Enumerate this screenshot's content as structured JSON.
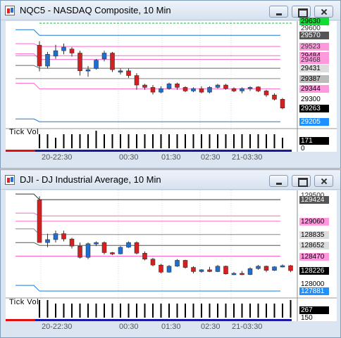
{
  "windows": [
    {
      "title": "NQC5 - NASDAQ Composite, 10 Min",
      "price_labels": [
        {
          "text": "29630",
          "bg": "#11dd33",
          "fg": "#000000"
        },
        {
          "text": "29600",
          "bg": "transparent",
          "fg": "#333333"
        },
        {
          "text": "29570",
          "bg": "#555555",
          "fg": "#ffffff"
        },
        {
          "text": "29523",
          "bg": "#ff99dd",
          "fg": "#333333"
        },
        {
          "text": "29484",
          "bg": "#ff99dd",
          "fg": "#000000"
        },
        {
          "text": "29468",
          "bg": "#ff99dd",
          "fg": "#333333"
        },
        {
          "text": "29431",
          "bg": "#dddddd",
          "fg": "#000000"
        },
        {
          "text": "29387",
          "bg": "#bbbbbb",
          "fg": "#000000"
        },
        {
          "text": "29344",
          "bg": "#ff99dd",
          "fg": "#000000"
        },
        {
          "text": "29300",
          "bg": "transparent",
          "fg": "#000000"
        },
        {
          "text": "29263",
          "bg": "#000000",
          "fg": "#ffffff"
        },
        {
          "text": "29205",
          "bg": "#1e90ff",
          "fg": "#ffffff"
        }
      ],
      "volume_label": "Tick Vol",
      "volume_values": [
        {
          "text": "171",
          "bg": "#000000",
          "fg": "#ffffff"
        },
        {
          "text": "0",
          "bg": "transparent",
          "fg": "#000000"
        }
      ],
      "time_labels": [
        "20-22:30",
        "00:30",
        "01:30",
        "02:30",
        "21-03:30"
      ]
    },
    {
      "title": "DJI - DJ Industrial Average, 10 Min",
      "price_labels": [
        {
          "text": "129500",
          "bg": "transparent",
          "fg": "#333333"
        },
        {
          "text": "129424",
          "bg": "#555555",
          "fg": "#ffffff"
        },
        {
          "text": "129060",
          "bg": "#ff99dd",
          "fg": "#000000"
        },
        {
          "text": "128835",
          "bg": "#dddddd",
          "fg": "#000000"
        },
        {
          "text": "128652",
          "bg": "#dddddd",
          "fg": "#000000"
        },
        {
          "text": "128470",
          "bg": "#ff99dd",
          "fg": "#000000"
        },
        {
          "text": "128226",
          "bg": "#000000",
          "fg": "#ffffff"
        },
        {
          "text": "128000",
          "bg": "transparent",
          "fg": "#000000"
        },
        {
          "text": "127881",
          "bg": "#1e90ff",
          "fg": "#ffffff"
        }
      ],
      "volume_label": "Tick Vol",
      "volume_values": [
        {
          "text": "267",
          "bg": "#000000",
          "fg": "#ffffff"
        },
        {
          "text": "150",
          "bg": "transparent",
          "fg": "#000000"
        }
      ],
      "time_labels": [
        "20-22:30",
        "00:30",
        "01:30",
        "02:30",
        "21-03:30"
      ]
    }
  ],
  "chart_data": [
    {
      "type": "candlestick",
      "title": "NQC5 - NASDAQ Composite, 10 Min",
      "ylim": [
        29185,
        29630
      ],
      "levels": [
        {
          "value": 29570,
          "color": "#1a7ad9"
        },
        {
          "value": 29523,
          "color": "#ff66cc"
        },
        {
          "value": 29484,
          "color": "#ff66cc"
        },
        {
          "value": 29468,
          "color": "#ff66cc"
        },
        {
          "value": 29431,
          "color": "#666666"
        },
        {
          "value": 29387,
          "color": "#888888"
        },
        {
          "value": 29344,
          "color": "#ff66cc"
        },
        {
          "value": 29205,
          "color": "#1a7ad9"
        }
      ],
      "candles": [
        {
          "o": 29528,
          "h": 29545,
          "l": 29418,
          "c": 29440
        },
        {
          "o": 29440,
          "h": 29500,
          "l": 29430,
          "c": 29490
        },
        {
          "o": 29482,
          "h": 29530,
          "l": 29470,
          "c": 29505
        },
        {
          "o": 29505,
          "h": 29535,
          "l": 29490,
          "c": 29520
        },
        {
          "o": 29512,
          "h": 29520,
          "l": 29480,
          "c": 29495
        },
        {
          "o": 29495,
          "h": 29505,
          "l": 29400,
          "c": 29420
        },
        {
          "o": 29420,
          "h": 29440,
          "l": 29395,
          "c": 29425
        },
        {
          "o": 29430,
          "h": 29470,
          "l": 29425,
          "c": 29465
        },
        {
          "o": 29470,
          "h": 29505,
          "l": 29460,
          "c": 29495
        },
        {
          "o": 29495,
          "h": 29500,
          "l": 29415,
          "c": 29425
        },
        {
          "o": 29420,
          "h": 29430,
          "l": 29405,
          "c": 29420
        },
        {
          "o": 29420,
          "h": 29430,
          "l": 29390,
          "c": 29400
        },
        {
          "o": 29400,
          "h": 29410,
          "l": 29340,
          "c": 29360
        },
        {
          "o": 29360,
          "h": 29365,
          "l": 29340,
          "c": 29350
        },
        {
          "o": 29350,
          "h": 29360,
          "l": 29320,
          "c": 29330
        },
        {
          "o": 29330,
          "h": 29355,
          "l": 29325,
          "c": 29345
        },
        {
          "o": 29345,
          "h": 29370,
          "l": 29340,
          "c": 29365
        },
        {
          "o": 29365,
          "h": 29370,
          "l": 29340,
          "c": 29350
        },
        {
          "o": 29350,
          "h": 29355,
          "l": 29330,
          "c": 29335
        },
        {
          "o": 29335,
          "h": 29350,
          "l": 29330,
          "c": 29345
        },
        {
          "o": 29345,
          "h": 29355,
          "l": 29325,
          "c": 29330
        },
        {
          "o": 29330,
          "h": 29355,
          "l": 29325,
          "c": 29350
        },
        {
          "o": 29350,
          "h": 29365,
          "l": 29345,
          "c": 29360
        },
        {
          "o": 29360,
          "h": 29365,
          "l": 29340,
          "c": 29345
        },
        {
          "o": 29345,
          "h": 29350,
          "l": 29330,
          "c": 29335
        },
        {
          "o": 29335,
          "h": 29350,
          "l": 29325,
          "c": 29345
        },
        {
          "o": 29345,
          "h": 29355,
          "l": 29335,
          "c": 29350
        },
        {
          "o": 29352,
          "h": 29355,
          "l": 29330,
          "c": 29335
        },
        {
          "o": 29335,
          "h": 29340,
          "l": 29310,
          "c": 29318
        },
        {
          "o": 29318,
          "h": 29325,
          "l": 29295,
          "c": 29300
        },
        {
          "o": 29300,
          "h": 29305,
          "l": 29258,
          "c": 29263
        }
      ],
      "volume": [
        4,
        4,
        3,
        4,
        4,
        4,
        4,
        5,
        4,
        4,
        4,
        4,
        4,
        4,
        4,
        4,
        4,
        4,
        4,
        4,
        4,
        4,
        4,
        4,
        4,
        4,
        4,
        4,
        4,
        4,
        3
      ]
    },
    {
      "type": "candlestick",
      "title": "DJI - DJ Industrial Average, 10 Min",
      "ylim": [
        127800,
        129580
      ],
      "levels": [
        {
          "value": 129424,
          "color": "#333333"
        },
        {
          "value": 129150,
          "color": "#ff66cc"
        },
        {
          "value": 129060,
          "color": "#ff66cc"
        },
        {
          "value": 128835,
          "color": "#888888"
        },
        {
          "value": 128652,
          "color": "#555555"
        },
        {
          "value": 128470,
          "color": "#ff66cc"
        },
        {
          "value": 127881,
          "color": "#1a7ad9"
        }
      ],
      "candles": [
        {
          "o": 129420,
          "h": 129480,
          "l": 128700,
          "c": 128700
        },
        {
          "o": 128700,
          "h": 128850,
          "l": 128620,
          "c": 128750
        },
        {
          "o": 128750,
          "h": 128900,
          "l": 128700,
          "c": 128850
        },
        {
          "o": 128850,
          "h": 128900,
          "l": 128720,
          "c": 128760
        },
        {
          "o": 128760,
          "h": 128780,
          "l": 128600,
          "c": 128640
        },
        {
          "o": 128640,
          "h": 128700,
          "l": 128430,
          "c": 128450
        },
        {
          "o": 128450,
          "h": 128700,
          "l": 128420,
          "c": 128680
        },
        {
          "o": 128680,
          "h": 128720,
          "l": 128640,
          "c": 128700
        },
        {
          "o": 128700,
          "h": 128720,
          "l": 128500,
          "c": 128530
        },
        {
          "o": 128530,
          "h": 128540,
          "l": 128490,
          "c": 128510
        },
        {
          "o": 128510,
          "h": 128640,
          "l": 128500,
          "c": 128620
        },
        {
          "o": 128620,
          "h": 128720,
          "l": 128610,
          "c": 128700
        },
        {
          "o": 128700,
          "h": 128720,
          "l": 128500,
          "c": 128520
        },
        {
          "o": 128520,
          "h": 128550,
          "l": 128400,
          "c": 128420
        },
        {
          "o": 128420,
          "h": 128440,
          "l": 128300,
          "c": 128320
        },
        {
          "o": 128320,
          "h": 128340,
          "l": 128180,
          "c": 128200
        },
        {
          "o": 128200,
          "h": 128320,
          "l": 128190,
          "c": 128300
        },
        {
          "o": 128300,
          "h": 128420,
          "l": 128290,
          "c": 128400
        },
        {
          "o": 128400,
          "h": 128410,
          "l": 128260,
          "c": 128280
        },
        {
          "o": 128280,
          "h": 128300,
          "l": 128180,
          "c": 128210
        },
        {
          "o": 128210,
          "h": 128250,
          "l": 128190,
          "c": 128240
        },
        {
          "o": 128240,
          "h": 128290,
          "l": 128200,
          "c": 128210
        },
        {
          "o": 128210,
          "h": 128320,
          "l": 128200,
          "c": 128300
        },
        {
          "o": 128300,
          "h": 128310,
          "l": 128160,
          "c": 128170
        },
        {
          "o": 128170,
          "h": 128200,
          "l": 128150,
          "c": 128180
        },
        {
          "o": 128180,
          "h": 128220,
          "l": 128150,
          "c": 128160
        },
        {
          "o": 128160,
          "h": 128280,
          "l": 128150,
          "c": 128260
        },
        {
          "o": 128260,
          "h": 128320,
          "l": 128240,
          "c": 128300
        },
        {
          "o": 128300,
          "h": 128310,
          "l": 128200,
          "c": 128230
        },
        {
          "o": 128230,
          "h": 128300,
          "l": 128220,
          "c": 128290
        },
        {
          "o": 128290,
          "h": 128330,
          "l": 128280,
          "c": 128310
        },
        {
          "o": 128310,
          "h": 128320,
          "l": 128200,
          "c": 128226
        }
      ],
      "volume": [
        5,
        5,
        4,
        4,
        4,
        4,
        4,
        4,
        4,
        4,
        4,
        4,
        4,
        4,
        4,
        4,
        4,
        4,
        4,
        4,
        4,
        4,
        4,
        4,
        4,
        4,
        4,
        4,
        4,
        4,
        4,
        5
      ]
    }
  ]
}
